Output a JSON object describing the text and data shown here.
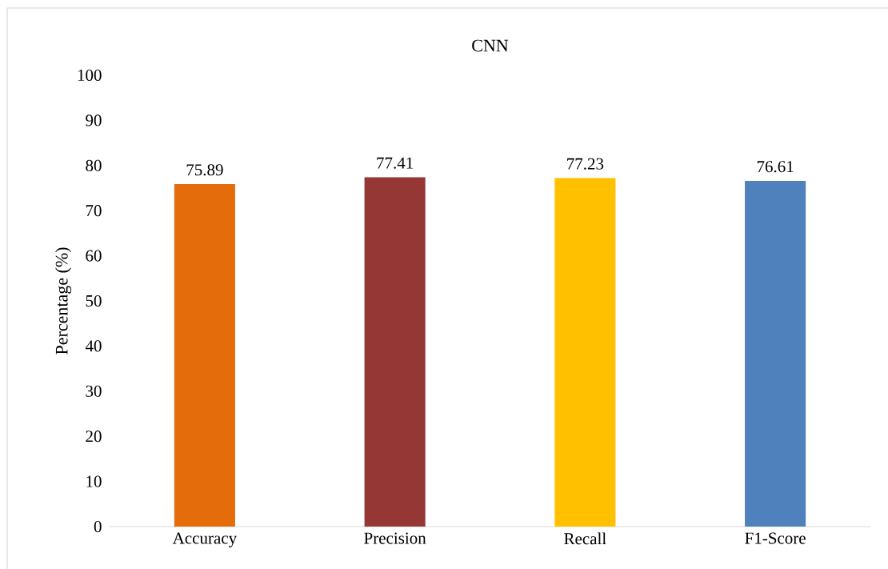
{
  "chart_data": {
    "type": "bar",
    "title": "CNN",
    "ylabel": "Percentage (%)",
    "categories": [
      "Accuracy",
      "Precision",
      "Recall",
      "F1-Score"
    ],
    "values": [
      75.89,
      77.41,
      77.23,
      76.61
    ],
    "colors": [
      "#e46c0a",
      "#953735",
      "#ffc000",
      "#4f81bd"
    ],
    "ylim": [
      0,
      100
    ],
    "yticks": [
      0,
      10,
      20,
      30,
      40,
      50,
      60,
      70,
      80,
      90,
      100
    ],
    "data_labels": true
  }
}
